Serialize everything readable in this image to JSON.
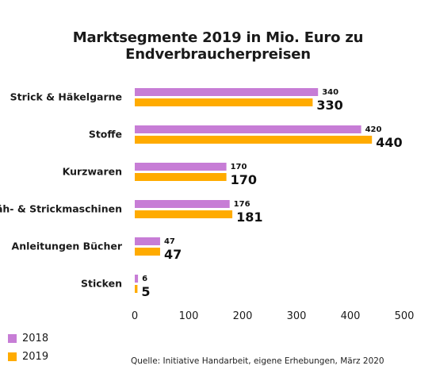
{
  "chart_data": {
    "type": "bar",
    "orientation": "horizontal",
    "title": "Marktsegmente 2019 in Mio. Euro zu Endverbraucherpreisen",
    "categories": [
      "Strick & Häkelgarne",
      "Stoffe",
      "Kurzwaren",
      "Näh- & Strickmaschinen",
      "Anleitungen Bücher",
      "Sticken"
    ],
    "series": [
      {
        "name": "2018",
        "color": "#c77dd6",
        "values": [
          340,
          420,
          170,
          176,
          47,
          6
        ]
      },
      {
        "name": "2019",
        "color": "#ffab00",
        "values": [
          330,
          440,
          170,
          181,
          47,
          5
        ]
      }
    ],
    "xlim": [
      0,
      500
    ],
    "xticks": [
      0,
      100,
      200,
      300,
      400,
      500
    ],
    "grid": false,
    "legend_position": "bottom-left",
    "source": "Quelle: Initiative Handarbeit, eigene Erhebungen, März 2020"
  }
}
